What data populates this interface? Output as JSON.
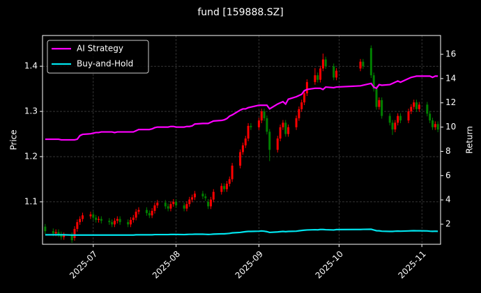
{
  "chart_data": {
    "type": "candlestick",
    "title": "fund [159888.SZ]",
    "ylabel": "Price",
    "y2label": "Return",
    "x": [
      "2025-06-13",
      "2025-06-16",
      "2025-06-17",
      "2025-06-18",
      "2025-06-19",
      "2025-06-20",
      "2025-06-23",
      "2025-06-24",
      "2025-06-25",
      "2025-06-26",
      "2025-06-27",
      "2025-06-30",
      "2025-07-01",
      "2025-07-02",
      "2025-07-03",
      "2025-07-04",
      "2025-07-07",
      "2025-07-08",
      "2025-07-09",
      "2025-07-10",
      "2025-07-11",
      "2025-07-14",
      "2025-07-15",
      "2025-07-16",
      "2025-07-17",
      "2025-07-18",
      "2025-07-21",
      "2025-07-22",
      "2025-07-23",
      "2025-07-24",
      "2025-07-25",
      "2025-07-28",
      "2025-07-29",
      "2025-07-30",
      "2025-07-31",
      "2025-08-01",
      "2025-08-04",
      "2025-08-05",
      "2025-08-06",
      "2025-08-07",
      "2025-08-08",
      "2025-08-11",
      "2025-08-12",
      "2025-08-13",
      "2025-08-14",
      "2025-08-15",
      "2025-08-18",
      "2025-08-19",
      "2025-08-20",
      "2025-08-21",
      "2025-08-22",
      "2025-08-25",
      "2025-08-26",
      "2025-08-27",
      "2025-08-28",
      "2025-08-29",
      "2025-09-01",
      "2025-09-02",
      "2025-09-03",
      "2025-09-04",
      "2025-09-05",
      "2025-09-08",
      "2025-09-09",
      "2025-09-10",
      "2025-09-11",
      "2025-09-12",
      "2025-09-15",
      "2025-09-16",
      "2025-09-17",
      "2025-09-18",
      "2025-09-19",
      "2025-09-22",
      "2025-09-23",
      "2025-09-24",
      "2025-09-25",
      "2025-09-26",
      "2025-09-29",
      "2025-09-30",
      "2025-10-09",
      "2025-10-10",
      "2025-10-13",
      "2025-10-14",
      "2025-10-15",
      "2025-10-16",
      "2025-10-17",
      "2025-10-20",
      "2025-10-21",
      "2025-10-22",
      "2025-10-23",
      "2025-10-24",
      "2025-10-27",
      "2025-10-28",
      "2025-10-29",
      "2025-10-30",
      "2025-10-31",
      "2025-11-03",
      "2025-11-04",
      "2025-11-05",
      "2025-11-06",
      "2025-11-07"
    ],
    "open": [
      1.045,
      1.035,
      1.03,
      1.033,
      1.028,
      1.022,
      1.026,
      1.02,
      1.04,
      1.055,
      1.062,
      1.068,
      1.072,
      1.065,
      1.06,
      1.062,
      1.058,
      1.055,
      1.05,
      1.058,
      1.062,
      1.055,
      1.05,
      1.06,
      1.065,
      1.078,
      1.082,
      1.075,
      1.07,
      1.08,
      1.092,
      1.098,
      1.09,
      1.085,
      1.095,
      1.1,
      1.092,
      1.085,
      1.095,
      1.105,
      1.11,
      1.118,
      1.112,
      1.1,
      1.09,
      1.105,
      1.122,
      1.135,
      1.128,
      1.14,
      1.15,
      1.18,
      1.21,
      1.225,
      1.24,
      1.268,
      1.265,
      1.28,
      1.3,
      1.285,
      1.255,
      1.215,
      1.24,
      1.265,
      1.275,
      1.25,
      1.265,
      1.285,
      1.305,
      1.32,
      1.34,
      1.365,
      1.38,
      1.37,
      1.395,
      1.415,
      1.4,
      1.375,
      1.395,
      1.41,
      1.44,
      1.38,
      1.35,
      1.31,
      1.325,
      1.29,
      1.275,
      1.26,
      1.275,
      1.29,
      1.28,
      1.3,
      1.31,
      1.32,
      1.305,
      1.315,
      1.295,
      1.28,
      1.265,
      1.272
    ],
    "high": [
      1.051,
      1.041,
      1.039,
      1.039,
      1.034,
      1.032,
      1.032,
      1.046,
      1.061,
      1.068,
      1.076,
      1.078,
      1.078,
      1.071,
      1.068,
      1.068,
      1.064,
      1.061,
      1.064,
      1.068,
      1.068,
      1.061,
      1.066,
      1.071,
      1.084,
      1.088,
      1.088,
      1.081,
      1.086,
      1.098,
      1.104,
      1.104,
      1.096,
      1.101,
      1.106,
      1.106,
      1.098,
      1.101,
      1.111,
      1.116,
      1.124,
      1.124,
      1.118,
      1.106,
      1.111,
      1.128,
      1.141,
      1.141,
      1.146,
      1.156,
      1.186,
      1.216,
      1.231,
      1.246,
      1.274,
      1.274,
      1.286,
      1.306,
      1.306,
      1.291,
      1.261,
      1.246,
      1.271,
      1.281,
      1.281,
      1.271,
      1.291,
      1.311,
      1.326,
      1.346,
      1.371,
      1.396,
      1.386,
      1.401,
      1.428,
      1.421,
      1.406,
      1.396,
      1.416,
      1.416,
      1.446,
      1.386,
      1.356,
      1.331,
      1.331,
      1.296,
      1.281,
      1.281,
      1.296,
      1.296,
      1.306,
      1.316,
      1.326,
      1.326,
      1.321,
      1.321,
      1.301,
      1.286,
      1.278,
      1.278
    ],
    "low": [
      1.029,
      1.024,
      1.024,
      1.022,
      1.016,
      1.016,
      1.009,
      1.014,
      1.034,
      1.049,
      1.056,
      1.062,
      1.059,
      1.054,
      1.054,
      1.052,
      1.049,
      1.044,
      1.044,
      1.052,
      1.049,
      1.044,
      1.044,
      1.054,
      1.059,
      1.072,
      1.069,
      1.064,
      1.064,
      1.074,
      1.086,
      1.084,
      1.079,
      1.079,
      1.089,
      1.086,
      1.079,
      1.079,
      1.089,
      1.099,
      1.104,
      1.106,
      1.102,
      1.084,
      1.084,
      1.099,
      1.116,
      1.122,
      1.122,
      1.134,
      1.144,
      1.174,
      1.204,
      1.219,
      1.234,
      1.259,
      1.259,
      1.274,
      1.279,
      1.249,
      1.19,
      1.209,
      1.234,
      1.259,
      1.244,
      1.244,
      1.259,
      1.279,
      1.299,
      1.314,
      1.334,
      1.359,
      1.364,
      1.364,
      1.389,
      1.394,
      1.369,
      1.369,
      1.389,
      1.394,
      1.374,
      1.344,
      1.304,
      1.304,
      1.284,
      1.269,
      1.248,
      1.254,
      1.269,
      1.274,
      1.274,
      1.294,
      1.304,
      1.299,
      1.299,
      1.289,
      1.274,
      1.259,
      1.259,
      1.254
    ],
    "close": [
      1.035,
      1.03,
      1.033,
      1.028,
      1.022,
      1.026,
      1.015,
      1.04,
      1.055,
      1.062,
      1.07,
      1.072,
      1.065,
      1.06,
      1.062,
      1.058,
      1.055,
      1.05,
      1.058,
      1.062,
      1.055,
      1.05,
      1.06,
      1.065,
      1.078,
      1.082,
      1.075,
      1.07,
      1.08,
      1.092,
      1.098,
      1.09,
      1.085,
      1.095,
      1.1,
      1.092,
      1.085,
      1.095,
      1.105,
      1.11,
      1.118,
      1.112,
      1.108,
      1.09,
      1.105,
      1.122,
      1.135,
      1.128,
      1.14,
      1.15,
      1.18,
      1.21,
      1.225,
      1.24,
      1.268,
      1.265,
      1.28,
      1.3,
      1.285,
      1.255,
      1.215,
      1.24,
      1.265,
      1.275,
      1.25,
      1.265,
      1.285,
      1.305,
      1.32,
      1.34,
      1.365,
      1.38,
      1.37,
      1.395,
      1.415,
      1.4,
      1.375,
      1.39,
      1.41,
      1.4,
      1.38,
      1.35,
      1.31,
      1.325,
      1.29,
      1.275,
      1.26,
      1.275,
      1.29,
      1.28,
      1.3,
      1.31,
      1.32,
      1.305,
      1.315,
      1.295,
      1.28,
      1.265,
      1.272,
      1.26
    ],
    "up_color": "#ff0000",
    "down_color": "#008000",
    "series": [
      {
        "name": "AI Strategy",
        "color": "#ff00ff",
        "axis": "y2",
        "values": [
          9.0,
          9.0,
          9.0,
          9.0,
          8.95,
          8.95,
          8.95,
          8.95,
          9.0,
          9.3,
          9.4,
          9.45,
          9.5,
          9.55,
          9.55,
          9.6,
          9.6,
          9.6,
          9.55,
          9.6,
          9.6,
          9.6,
          9.6,
          9.6,
          9.7,
          9.8,
          9.8,
          9.8,
          9.85,
          9.95,
          10.0,
          10.0,
          10.0,
          10.05,
          10.05,
          10.0,
          10.0,
          10.05,
          10.05,
          10.1,
          10.25,
          10.3,
          10.3,
          10.3,
          10.4,
          10.5,
          10.55,
          10.6,
          10.7,
          10.9,
          11.0,
          11.4,
          11.5,
          11.5,
          11.6,
          11.65,
          11.8,
          11.8,
          11.8,
          11.8,
          11.5,
          11.9,
          12.0,
          12.1,
          11.9,
          12.3,
          12.5,
          12.6,
          12.7,
          13.0,
          13.1,
          13.2,
          13.2,
          13.2,
          13.1,
          13.3,
          13.25,
          13.3,
          13.4,
          13.45,
          13.6,
          13.3,
          13.2,
          13.5,
          13.45,
          13.5,
          13.6,
          13.7,
          13.8,
          13.7,
          14.0,
          14.1,
          14.15,
          14.2,
          14.2,
          14.2,
          14.2,
          14.1,
          14.2,
          14.2
        ]
      },
      {
        "name": "Buy-and-Hold",
        "color": "#00e5ee",
        "axis": "y2",
        "values": [
          1.12,
          1.12,
          1.12,
          1.12,
          1.12,
          1.12,
          1.1,
          1.1,
          1.1,
          1.1,
          1.1,
          1.1,
          1.1,
          1.1,
          1.1,
          1.1,
          1.1,
          1.1,
          1.1,
          1.1,
          1.1,
          1.1,
          1.1,
          1.1,
          1.12,
          1.12,
          1.12,
          1.12,
          1.12,
          1.14,
          1.14,
          1.14,
          1.14,
          1.15,
          1.15,
          1.15,
          1.14,
          1.15,
          1.16,
          1.16,
          1.17,
          1.17,
          1.16,
          1.15,
          1.16,
          1.18,
          1.2,
          1.2,
          1.22,
          1.24,
          1.28,
          1.32,
          1.35,
          1.38,
          1.4,
          1.4,
          1.42,
          1.44,
          1.42,
          1.38,
          1.32,
          1.36,
          1.38,
          1.4,
          1.38,
          1.4,
          1.42,
          1.45,
          1.48,
          1.5,
          1.52,
          1.54,
          1.53,
          1.56,
          1.56,
          1.54,
          1.52,
          1.55,
          1.56,
          1.57,
          1.58,
          1.52,
          1.46,
          1.45,
          1.42,
          1.4,
          1.4,
          1.42,
          1.43,
          1.42,
          1.44,
          1.45,
          1.46,
          1.45,
          1.45,
          1.44,
          1.42,
          1.41,
          1.42,
          1.41
        ]
      }
    ],
    "xlim": [
      "2025-06-12",
      "2025-11-08"
    ],
    "xticks": [
      "2025-07",
      "2025-08",
      "2025-09",
      "2025-10",
      "2025-11"
    ],
    "ylim": [
      1.006,
      1.468
    ],
    "yticks": [
      1.1,
      1.2,
      1.3,
      1.4
    ],
    "y2lim": [
      0.34,
      17.55
    ],
    "y2ticks": [
      2,
      4,
      6,
      8,
      10,
      12,
      14,
      16
    ],
    "grid": true,
    "legend": "upper left"
  }
}
